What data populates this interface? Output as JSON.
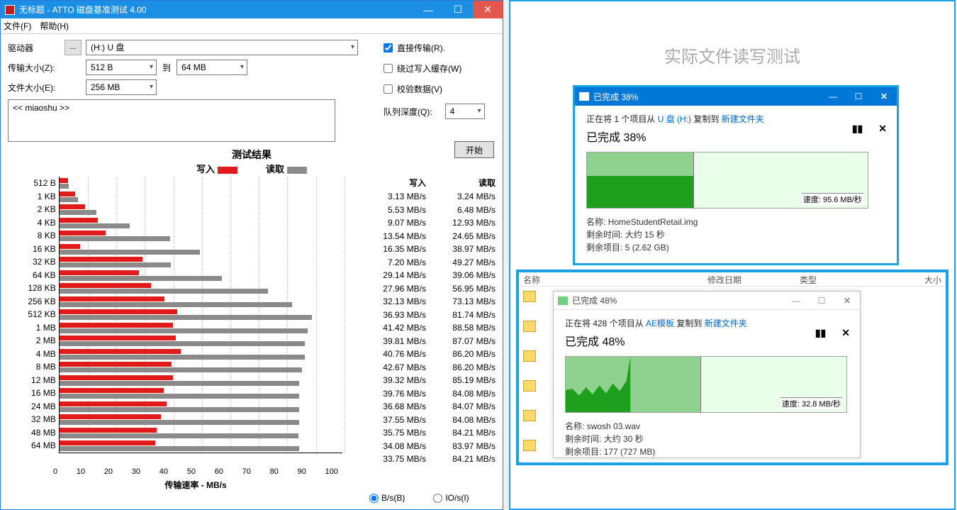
{
  "atto": {
    "title": "无标题 - ATTO 磁盘基准测试 4.00",
    "menu": {
      "file": "文件(F)",
      "help": "帮助(H)"
    },
    "drive_label": "驱动器",
    "drive_value": "(H:) U 盘",
    "transfer_size_label": "传输大小(Z):",
    "transfer_from": "512 B",
    "to_label": "到",
    "transfer_to": "64 MB",
    "file_size_label": "文件大小(E):",
    "file_size_value": "256 MB",
    "direct_label": "直接传输(R).",
    "bypass_label": "绕过写入缓存(W)",
    "verify_label": "校验数据(V)",
    "qd_label": "队列深度(Q):",
    "qd_value": "4",
    "desc_value": "<< miaoshu >>",
    "start_label": "开始",
    "results_title": "测试结果",
    "legend_write": "写入",
    "legend_read": "读取",
    "col_write": "写入",
    "col_read": "读取",
    "color_write": "#e11b1b",
    "color_read": "#8a8a8a",
    "xaxis_label": "传输速率 - MB/s",
    "xticks": [
      "0",
      "10",
      "20",
      "30",
      "40",
      "50",
      "60",
      "70",
      "80",
      "90",
      "100"
    ],
    "xmax": 100,
    "rows": [
      {
        "label": "512 B",
        "write": 3.13,
        "read": 3.24,
        "unit": "MB/s"
      },
      {
        "label": "1 KB",
        "write": 5.53,
        "read": 6.48,
        "unit": "MB/s"
      },
      {
        "label": "2 KB",
        "write": 9.07,
        "read": 12.93,
        "unit": "MB/s"
      },
      {
        "label": "4 KB",
        "write": 13.54,
        "read": 24.65,
        "unit": "MB/s"
      },
      {
        "label": "8 KB",
        "write": 16.35,
        "read": 38.97,
        "unit": "MB/s"
      },
      {
        "label": "16 KB",
        "write": 7.2,
        "read": 49.27,
        "unit": "MB/s"
      },
      {
        "label": "32 KB",
        "write": 29.14,
        "read": 39.06,
        "unit": "MB/s"
      },
      {
        "label": "64 KB",
        "write": 27.96,
        "read": 56.95,
        "unit": "MB/s"
      },
      {
        "label": "128 KB",
        "write": 32.13,
        "read": 73.13,
        "unit": "MB/s"
      },
      {
        "label": "256 KB",
        "write": 36.93,
        "read": 81.74,
        "unit": "MB/s"
      },
      {
        "label": "512 KB",
        "write": 41.42,
        "read": 88.58,
        "unit": "MB/s"
      },
      {
        "label": "1 MB",
        "write": 39.81,
        "read": 87.07,
        "unit": "MB/s"
      },
      {
        "label": "2 MB",
        "write": 40.76,
        "read": 86.2,
        "unit": "MB/s"
      },
      {
        "label": "4 MB",
        "write": 42.67,
        "read": 86.2,
        "unit": "MB/s"
      },
      {
        "label": "8 MB",
        "write": 39.32,
        "read": 85.19,
        "unit": "MB/s"
      },
      {
        "label": "12 MB",
        "write": 39.76,
        "read": 84.08,
        "unit": "MB/s"
      },
      {
        "label": "16 MB",
        "write": 36.68,
        "read": 84.07,
        "unit": "MB/s"
      },
      {
        "label": "24 MB",
        "write": 37.55,
        "read": 84.08,
        "unit": "MB/s"
      },
      {
        "label": "32 MB",
        "write": 35.75,
        "read": 84.21,
        "unit": "MB/s"
      },
      {
        "label": "48 MB",
        "write": 34.08,
        "read": 83.97,
        "unit": "MB/s"
      },
      {
        "label": "64 MB",
        "write": 33.75,
        "read": 84.21,
        "unit": "MB/s"
      }
    ],
    "radio_bs": "B/s(B)",
    "radio_ios": "IO/s(I)"
  },
  "right": {
    "title": "实际文件读写测试",
    "copy1": {
      "title": "已完成 38%",
      "line_pre": "正在将 1 个项目从 ",
      "line_src": "U 盘 (H:)",
      "line_mid": " 复制到 ",
      "line_dst": "新建文件夹",
      "pct": "已完成 38%",
      "speed": "速度: 95.6 MB/秒",
      "name_lbl": "名称:",
      "name_val": "HomeStudentRetail.img",
      "remain_lbl": "剩余时间:",
      "remain_val": "大约 15 秒",
      "items_lbl": "剩余项目:",
      "items_val": "5 (2.62 GB)",
      "progress_split_pct": 38,
      "dark_height_pct": 58,
      "light_color": "#8fd18f",
      "dark_color": "#1ea01e"
    },
    "explorer": {
      "cols": {
        "name": "名称",
        "date": "修改日期",
        "type": "类型",
        "size": "大小"
      }
    },
    "copy2": {
      "title": "已完成 48%",
      "line_pre": "正在将 428 个项目从 ",
      "line_src": "AE模板",
      "line_mid": " 复制到 ",
      "line_dst": "新建文件夹",
      "pct": "已完成 48%",
      "speed": "速度: 32.8 MB/秒",
      "name_lbl": "名称:",
      "name_val": "swosh 03.wav",
      "remain_lbl": "剩余时间:",
      "remain_val": "大约 30 秒",
      "items_lbl": "剩余项目:",
      "items_val": "177 (727 MB)",
      "progress_split_pct": 48,
      "light_color": "#8fd18f",
      "dark_color": "#1ea01e"
    }
  }
}
